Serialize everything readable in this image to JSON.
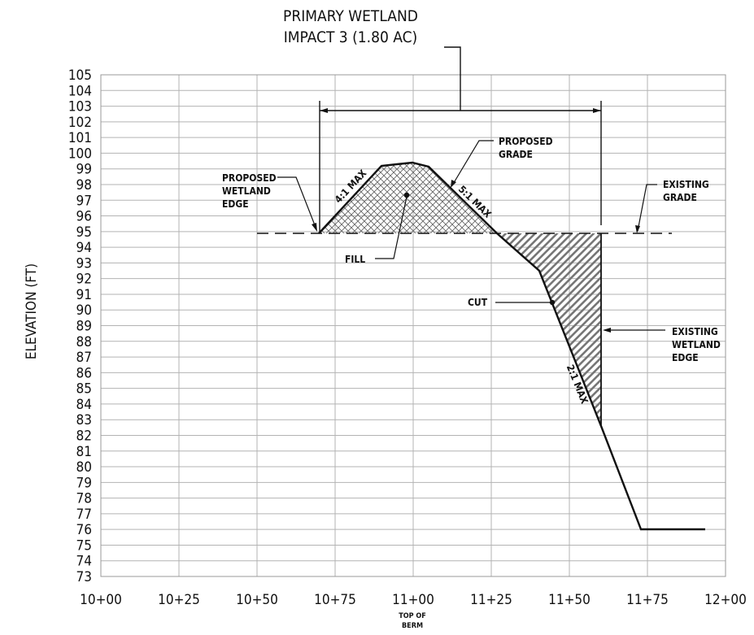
{
  "title": {
    "line1": "PRIMARY WETLAND",
    "line2": "IMPACT 3 (1.80 AC)"
  },
  "axis": {
    "ylabel": "ELEVATION (FT)",
    "x_ticks": [
      "10+00",
      "10+25",
      "10+50",
      "10+75",
      "11+00",
      "11+25",
      "11+50",
      "11+75",
      "12+00"
    ],
    "y_ticks": [
      "105",
      "104",
      "103",
      "102",
      "101",
      "100",
      "99",
      "98",
      "97",
      "96",
      "95",
      "94",
      "93",
      "92",
      "91",
      "90",
      "89",
      "88",
      "87",
      "86",
      "85",
      "84",
      "83",
      "82",
      "81",
      "80",
      "79",
      "78",
      "77",
      "76",
      "75",
      "74",
      "73"
    ],
    "x_sub_label_1": "TOP OF",
    "x_sub_label_2": "BERM"
  },
  "labels": {
    "proposed_wetland_edge": [
      "PROPOSED",
      "WETLAND",
      "EDGE"
    ],
    "proposed_grade": [
      "PROPOSED",
      "GRADE"
    ],
    "existing_grade": [
      "EXISTING",
      "GRADE"
    ],
    "existing_wetland_edge": [
      "EXISTING",
      "WETLAND",
      "EDGE"
    ],
    "fill": "FILL",
    "cut": "CUT",
    "slope_4_1": "4:1 MAX",
    "slope_5_1": "5:1 MAX",
    "slope_2_1": "2:1 MAX"
  },
  "chart_data": {
    "type": "line",
    "xlabel": "",
    "ylabel": "ELEVATION (FT)",
    "x_range": [
      "10+00",
      "12+00"
    ],
    "ylim": [
      73,
      105
    ],
    "grid": true,
    "series": [
      {
        "name": "PROPOSED GRADE",
        "points": [
          [
            "10+70",
            95
          ],
          [
            "10+89",
            99.3
          ],
          [
            "10+99",
            99.5
          ],
          [
            "11+05",
            99.2
          ],
          [
            "11+27",
            95
          ],
          [
            "11+40",
            92.5
          ],
          [
            "11+60",
            82.5
          ],
          [
            "11+73",
            76
          ],
          [
            "11+93",
            76
          ]
        ]
      },
      {
        "name": "EXISTING GRADE",
        "points": [
          [
            "10+50",
            95
          ],
          [
            "11+80",
            95
          ]
        ]
      }
    ],
    "annotations": [
      {
        "text": "FILL",
        "x": "10+98",
        "y": 97.4
      },
      {
        "text": "CUT",
        "x": "11+52",
        "y": 90.6
      },
      {
        "text": "PRIMARY WETLAND IMPACT 3 (1.80 AC)",
        "x_range": [
          "10+70",
          "11+60"
        ],
        "y": 103
      },
      {
        "text": "EXISTING WETLAND EDGE",
        "x": "11+60"
      },
      {
        "text": "PROPOSED WETLAND EDGE",
        "x": "10+70"
      }
    ]
  }
}
